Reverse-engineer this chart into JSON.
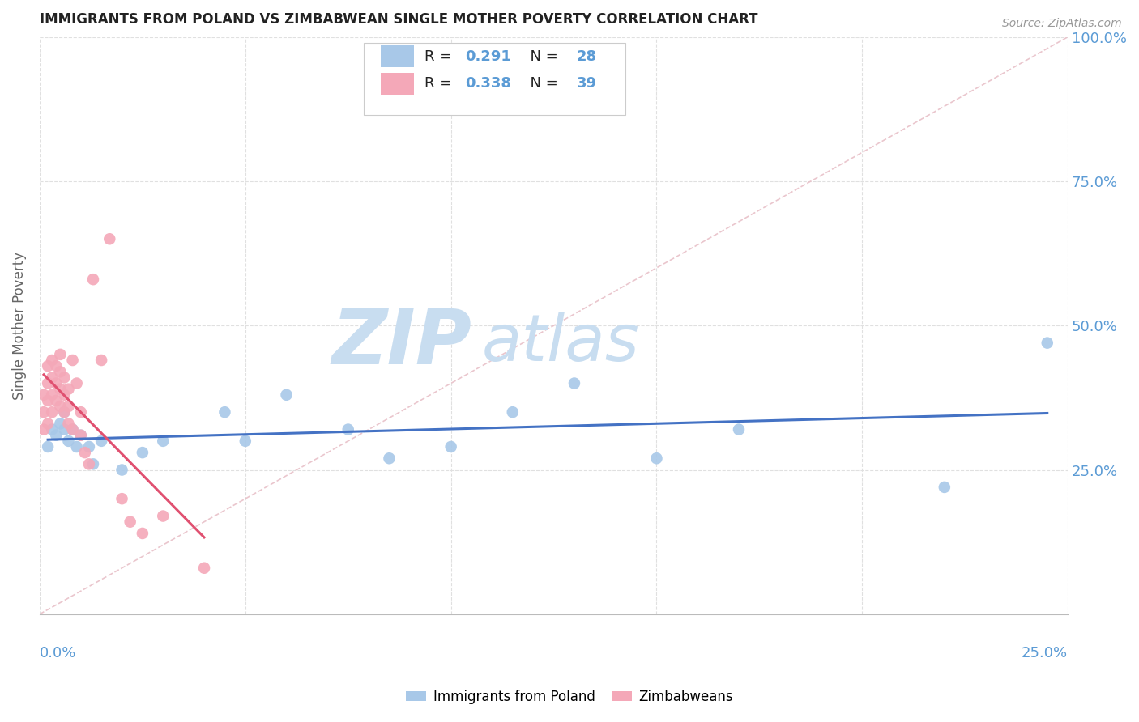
{
  "title": "IMMIGRANTS FROM POLAND VS ZIMBABWEAN SINGLE MOTHER POVERTY CORRELATION CHART",
  "source": "Source: ZipAtlas.com",
  "ylabel": "Single Mother Poverty",
  "legend_label1": "Immigrants from Poland",
  "legend_label2": "Zimbabweans",
  "blue_color": "#a8c8e8",
  "pink_color": "#f4a8b8",
  "blue_line_color": "#4472c4",
  "pink_line_color": "#e05070",
  "ref_line_color": "#e8c0c8",
  "title_color": "#222222",
  "axis_label_color": "#5b9bd5",
  "watermark_zip": "ZIP",
  "watermark_atlas": "atlas",
  "watermark_color_zip": "#c8ddf0",
  "watermark_color_atlas": "#c8ddf0",
  "background_color": "#ffffff",
  "grid_color": "#e0e0e0",
  "blue_r": "0.291",
  "blue_n": "28",
  "pink_r": "0.338",
  "pink_n": "39",
  "blue_scatter_x": [
    0.002,
    0.003,
    0.004,
    0.005,
    0.006,
    0.006,
    0.007,
    0.008,
    0.009,
    0.01,
    0.012,
    0.013,
    0.015,
    0.02,
    0.025,
    0.03,
    0.045,
    0.05,
    0.06,
    0.075,
    0.085,
    0.1,
    0.115,
    0.13,
    0.15,
    0.17,
    0.22,
    0.245
  ],
  "blue_scatter_y": [
    0.29,
    0.32,
    0.31,
    0.33,
    0.32,
    0.35,
    0.3,
    0.32,
    0.29,
    0.31,
    0.29,
    0.26,
    0.3,
    0.25,
    0.28,
    0.3,
    0.35,
    0.3,
    0.38,
    0.32,
    0.27,
    0.29,
    0.35,
    0.4,
    0.27,
    0.32,
    0.22,
    0.47
  ],
  "pink_scatter_x": [
    0.001,
    0.001,
    0.001,
    0.002,
    0.002,
    0.002,
    0.002,
    0.003,
    0.003,
    0.003,
    0.003,
    0.004,
    0.004,
    0.004,
    0.005,
    0.005,
    0.005,
    0.005,
    0.006,
    0.006,
    0.006,
    0.007,
    0.007,
    0.007,
    0.008,
    0.008,
    0.009,
    0.01,
    0.01,
    0.011,
    0.012,
    0.013,
    0.015,
    0.017,
    0.02,
    0.022,
    0.025,
    0.03,
    0.04
  ],
  "pink_scatter_y": [
    0.32,
    0.35,
    0.38,
    0.33,
    0.37,
    0.4,
    0.43,
    0.35,
    0.38,
    0.41,
    0.44,
    0.37,
    0.4,
    0.43,
    0.36,
    0.39,
    0.42,
    0.45,
    0.35,
    0.38,
    0.41,
    0.33,
    0.36,
    0.39,
    0.32,
    0.44,
    0.4,
    0.31,
    0.35,
    0.28,
    0.26,
    0.58,
    0.44,
    0.65,
    0.2,
    0.16,
    0.14,
    0.17,
    0.08
  ],
  "xlim": [
    0,
    0.25
  ],
  "ylim": [
    0,
    1.0
  ],
  "y_ticks": [
    0.0,
    0.25,
    0.5,
    0.75,
    1.0
  ],
  "y_tick_labels": [
    "",
    "25.0%",
    "50.0%",
    "75.0%",
    "100.0%"
  ]
}
